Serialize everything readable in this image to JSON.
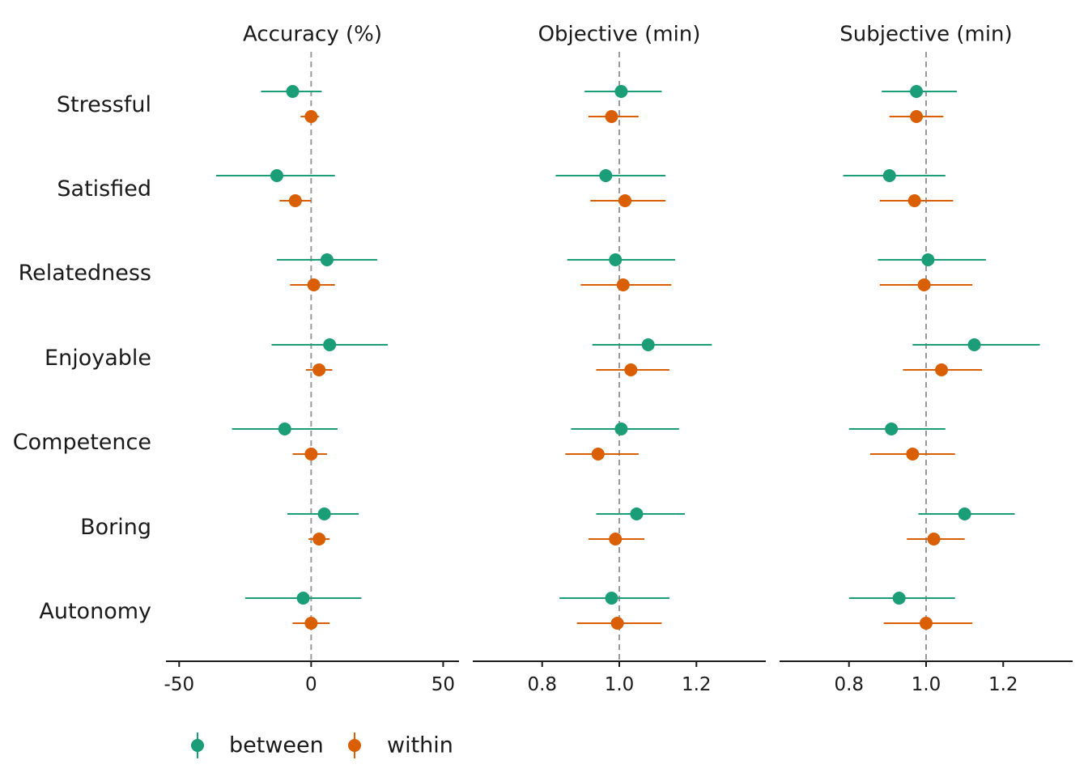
{
  "chart_data": {
    "type": "scatter",
    "subtype": "forest-plot",
    "rows": [
      "Stressful",
      "Satisfied",
      "Relatedness",
      "Enjoyable",
      "Competence",
      "Boring",
      "Autonomy"
    ],
    "legend": {
      "position": "bottom-left",
      "items": [
        {
          "key": "between",
          "label": "between",
          "color": "#1b9e77"
        },
        {
          "key": "within",
          "label": "within",
          "color": "#d95f02"
        }
      ]
    },
    "reference_line": "dashed grey vertical",
    "panels": [
      {
        "title": "Accuracy (%)",
        "xlim": [
          -55,
          56
        ],
        "reference": 0,
        "ticks": [
          -50,
          0,
          50
        ],
        "tick_labels": [
          "-50",
          "0",
          "50"
        ],
        "series": {
          "between": [
            {
              "row": "Stressful",
              "est": -7,
              "lo": -19,
              "hi": 4
            },
            {
              "row": "Satisfied",
              "est": -13,
              "lo": -36,
              "hi": 9
            },
            {
              "row": "Relatedness",
              "est": 6,
              "lo": -13,
              "hi": 25
            },
            {
              "row": "Enjoyable",
              "est": 7,
              "lo": -15,
              "hi": 29
            },
            {
              "row": "Competence",
              "est": -10,
              "lo": -30,
              "hi": 10
            },
            {
              "row": "Boring",
              "est": 5,
              "lo": -9,
              "hi": 18
            },
            {
              "row": "Autonomy",
              "est": -3,
              "lo": -25,
              "hi": 19
            }
          ],
          "within": [
            {
              "row": "Stressful",
              "est": 0,
              "lo": -4,
              "hi": 3
            },
            {
              "row": "Satisfied",
              "est": -6,
              "lo": -12,
              "hi": 0
            },
            {
              "row": "Relatedness",
              "est": 1,
              "lo": -8,
              "hi": 9
            },
            {
              "row": "Enjoyable",
              "est": 3,
              "lo": -2,
              "hi": 8
            },
            {
              "row": "Competence",
              "est": 0,
              "lo": -7,
              "hi": 6
            },
            {
              "row": "Boring",
              "est": 3,
              "lo": -1,
              "hi": 7
            },
            {
              "row": "Autonomy",
              "est": 0,
              "lo": -7,
              "hi": 7
            }
          ]
        }
      },
      {
        "title": "Objective (min)",
        "xlim": [
          0.62,
          1.38
        ],
        "reference": 1.0,
        "ticks": [
          0.8,
          1.0,
          1.2
        ],
        "tick_labels": [
          "0.8",
          "1.0",
          "1.2"
        ],
        "series": {
          "between": [
            {
              "row": "Stressful",
              "est": 1.005,
              "lo": 0.91,
              "hi": 1.11
            },
            {
              "row": "Satisfied",
              "est": 0.965,
              "lo": 0.835,
              "hi": 1.12
            },
            {
              "row": "Relatedness",
              "est": 0.99,
              "lo": 0.865,
              "hi": 1.145
            },
            {
              "row": "Enjoyable",
              "est": 1.075,
              "lo": 0.93,
              "hi": 1.24
            },
            {
              "row": "Competence",
              "est": 1.005,
              "lo": 0.875,
              "hi": 1.155
            },
            {
              "row": "Boring",
              "est": 1.045,
              "lo": 0.94,
              "hi": 1.17
            },
            {
              "row": "Autonomy",
              "est": 0.98,
              "lo": 0.845,
              "hi": 1.13
            }
          ],
          "within": [
            {
              "row": "Stressful",
              "est": 0.98,
              "lo": 0.92,
              "hi": 1.05
            },
            {
              "row": "Satisfied",
              "est": 1.015,
              "lo": 0.925,
              "hi": 1.12
            },
            {
              "row": "Relatedness",
              "est": 1.01,
              "lo": 0.9,
              "hi": 1.135
            },
            {
              "row": "Enjoyable",
              "est": 1.03,
              "lo": 0.94,
              "hi": 1.13
            },
            {
              "row": "Competence",
              "est": 0.945,
              "lo": 0.86,
              "hi": 1.05
            },
            {
              "row": "Boring",
              "est": 0.99,
              "lo": 0.92,
              "hi": 1.065
            },
            {
              "row": "Autonomy",
              "est": 0.995,
              "lo": 0.89,
              "hi": 1.11
            }
          ]
        }
      },
      {
        "title": "Subjective (min)",
        "xlim": [
          0.62,
          1.38
        ],
        "reference": 1.0,
        "ticks": [
          0.8,
          1.0,
          1.2
        ],
        "tick_labels": [
          "0.8",
          "1.0",
          "1.2"
        ],
        "series": {
          "between": [
            {
              "row": "Stressful",
              "est": 0.975,
              "lo": 0.885,
              "hi": 1.08
            },
            {
              "row": "Satisfied",
              "est": 0.905,
              "lo": 0.785,
              "hi": 1.05
            },
            {
              "row": "Relatedness",
              "est": 1.005,
              "lo": 0.875,
              "hi": 1.155
            },
            {
              "row": "Enjoyable",
              "est": 1.125,
              "lo": 0.965,
              "hi": 1.295
            },
            {
              "row": "Competence",
              "est": 0.91,
              "lo": 0.8,
              "hi": 1.05
            },
            {
              "row": "Boring",
              "est": 1.1,
              "lo": 0.98,
              "hi": 1.23
            },
            {
              "row": "Autonomy",
              "est": 0.93,
              "lo": 0.8,
              "hi": 1.075
            }
          ],
          "within": [
            {
              "row": "Stressful",
              "est": 0.975,
              "lo": 0.905,
              "hi": 1.045
            },
            {
              "row": "Satisfied",
              "est": 0.97,
              "lo": 0.88,
              "hi": 1.07
            },
            {
              "row": "Relatedness",
              "est": 0.995,
              "lo": 0.88,
              "hi": 1.12
            },
            {
              "row": "Enjoyable",
              "est": 1.04,
              "lo": 0.94,
              "hi": 1.145
            },
            {
              "row": "Competence",
              "est": 0.965,
              "lo": 0.855,
              "hi": 1.075
            },
            {
              "row": "Boring",
              "est": 1.02,
              "lo": 0.95,
              "hi": 1.1
            },
            {
              "row": "Autonomy",
              "est": 1.0,
              "lo": 0.89,
              "hi": 1.12
            }
          ]
        }
      }
    ]
  }
}
